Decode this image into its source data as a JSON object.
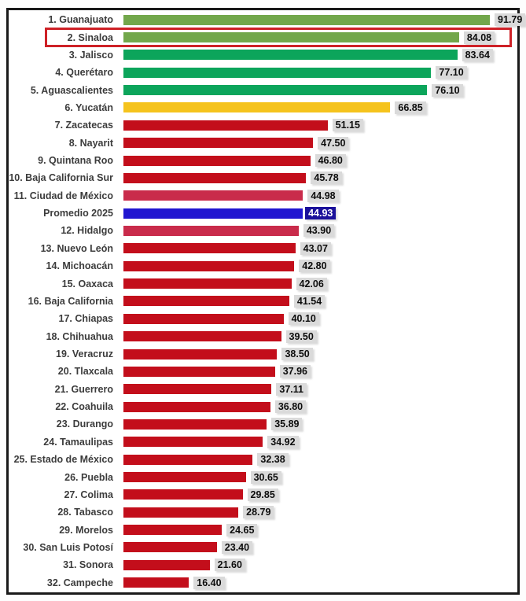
{
  "chart_data": {
    "type": "bar",
    "orientation": "horizontal",
    "title": "",
    "xlabel": "",
    "ylabel": "",
    "value_range_hint": [
      0,
      91.79
    ],
    "grid": false,
    "legend": false,
    "palette": {
      "green_light": "#72a74b",
      "green": "#0ca55b",
      "amber": "#f5c31d",
      "red": "#c30e1b",
      "crimson": "#c92b4b",
      "blue": "#2016d0"
    },
    "value_chip": {
      "bg": "#dadada",
      "text": "#0d0d0d",
      "average_bg": "#1b119b",
      "average_text": "#ffffff"
    },
    "highlight_box_color": "#ce2127",
    "frame_border_color": "#191919",
    "rows": [
      {
        "label": "1. Guanajuato",
        "value": 91.79,
        "display": "91.79",
        "color": "green_light"
      },
      {
        "label": "2. Sinaloa",
        "value": 84.08,
        "display": "84.08",
        "color": "green_light",
        "highlighted": true
      },
      {
        "label": "3. Jalisco",
        "value": 83.64,
        "display": "83.64",
        "color": "green"
      },
      {
        "label": "4. Querétaro",
        "value": 77.1,
        "display": "77.10",
        "color": "green"
      },
      {
        "label": "5. Aguascalientes",
        "value": 76.1,
        "display": "76.10",
        "color": "green"
      },
      {
        "label": "6. Yucatán",
        "value": 66.85,
        "display": "66.85",
        "color": "amber"
      },
      {
        "label": "7. Zacatecas",
        "value": 51.15,
        "display": "51.15",
        "color": "red"
      },
      {
        "label": "8. Nayarit",
        "value": 47.5,
        "display": "47.50",
        "color": "red"
      },
      {
        "label": "9. Quintana Roo",
        "value": 46.8,
        "display": "46.80",
        "color": "red"
      },
      {
        "label": "10. Baja California Sur",
        "value": 45.78,
        "display": "45.78",
        "color": "red"
      },
      {
        "label": "11. Ciudad de México",
        "value": 44.98,
        "display": "44.98",
        "color": "crimson"
      },
      {
        "label": "Promedio 2025",
        "value": 44.93,
        "display": "44.93",
        "color": "blue",
        "average": true
      },
      {
        "label": "12. Hidalgo",
        "value": 43.9,
        "display": "43.90",
        "color": "crimson"
      },
      {
        "label": "13. Nuevo León",
        "value": 43.07,
        "display": "43.07",
        "color": "red"
      },
      {
        "label": "14. Michoacán",
        "value": 42.8,
        "display": "42.80",
        "color": "red"
      },
      {
        "label": "15. Oaxaca",
        "value": 42.06,
        "display": "42.06",
        "color": "red"
      },
      {
        "label": "16. Baja California",
        "value": 41.54,
        "display": "41.54",
        "color": "red"
      },
      {
        "label": "17. Chiapas",
        "value": 40.1,
        "display": "40.10",
        "color": "red"
      },
      {
        "label": "18. Chihuahua",
        "value": 39.5,
        "display": "39.50",
        "color": "red"
      },
      {
        "label": "19. Veracruz",
        "value": 38.5,
        "display": "38.50",
        "color": "red"
      },
      {
        "label": "20. Tlaxcala",
        "value": 37.96,
        "display": "37.96",
        "color": "red"
      },
      {
        "label": "21. Guerrero",
        "value": 37.11,
        "display": "37.11",
        "color": "red"
      },
      {
        "label": "22. Coahuila",
        "value": 36.8,
        "display": "36.80",
        "color": "red"
      },
      {
        "label": "23. Durango",
        "value": 35.89,
        "display": "35.89",
        "color": "red"
      },
      {
        "label": "24. Tamaulipas",
        "value": 34.92,
        "display": "34.92",
        "color": "red"
      },
      {
        "label": "25. Estado de México",
        "value": 32.38,
        "display": "32.38",
        "color": "red"
      },
      {
        "label": "26. Puebla",
        "value": 30.65,
        "display": "30.65",
        "color": "red"
      },
      {
        "label": "27. Colima",
        "value": 29.85,
        "display": "29.85",
        "color": "red"
      },
      {
        "label": "28. Tabasco",
        "value": 28.79,
        "display": "28.79",
        "color": "red"
      },
      {
        "label": "29. Morelos",
        "value": 24.65,
        "display": "24.65",
        "color": "red"
      },
      {
        "label": "30. San Luis Potosí",
        "value": 23.4,
        "display": "23.40",
        "color": "red"
      },
      {
        "label": "31. Sonora",
        "value": 21.6,
        "display": "21.60",
        "color": "red"
      },
      {
        "label": "32. Campeche",
        "value": 16.4,
        "display": "16.40",
        "color": "red"
      }
    ]
  }
}
